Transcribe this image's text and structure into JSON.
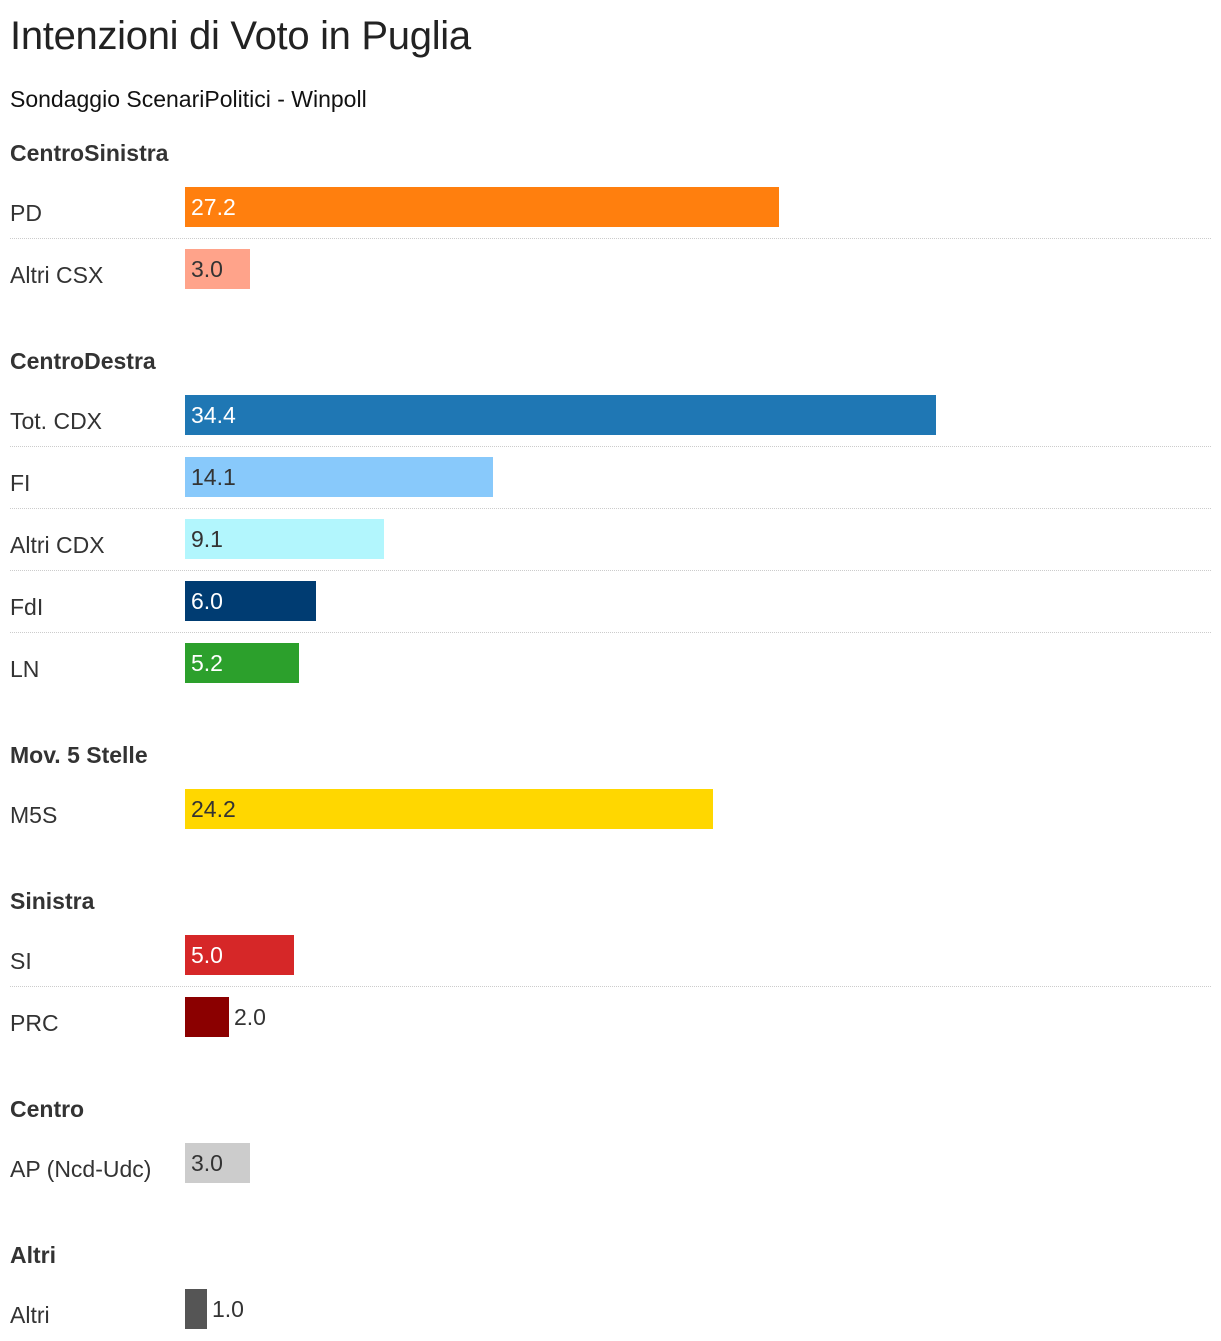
{
  "title": "Intenzioni di Voto in Puglia",
  "subtitle": "Sondaggio ScenariPolitici - Winpoll",
  "chart_data": {
    "type": "bar",
    "orientation": "horizontal",
    "title": "Intenzioni di Voto in Puglia",
    "subtitle": "Sondaggio ScenariPolitici - Winpoll",
    "xlim": [
      0,
      34.4
    ],
    "grid": false,
    "groups": [
      {
        "name": "CentroSinistra",
        "rows": [
          {
            "label": "PD",
            "value": 27.2,
            "value_label": "27.2",
            "color": "#ff7f0e",
            "text_color": "#ffffff"
          },
          {
            "label": "Altri CSX",
            "value": 3.0,
            "value_label": "3.0",
            "color": "#ffa38a",
            "text_color": "#333333"
          }
        ]
      },
      {
        "name": "CentroDestra",
        "rows": [
          {
            "label": "Tot. CDX",
            "value": 34.4,
            "value_label": "34.4",
            "color": "#1f77b4",
            "text_color": "#ffffff"
          },
          {
            "label": "FI",
            "value": 14.1,
            "value_label": "14.1",
            "color": "#88c9fb",
            "text_color": "#333333"
          },
          {
            "label": "Altri CDX",
            "value": 9.1,
            "value_label": "9.1",
            "color": "#b2f6fd",
            "text_color": "#333333"
          },
          {
            "label": "FdI",
            "value": 6.0,
            "value_label": "6.0",
            "color": "#003c72",
            "text_color": "#ffffff"
          },
          {
            "label": "LN",
            "value": 5.2,
            "value_label": "5.2",
            "color": "#2ca02c",
            "text_color": "#ffffff"
          }
        ]
      },
      {
        "name": "Mov. 5 Stelle",
        "rows": [
          {
            "label": "M5S",
            "value": 24.2,
            "value_label": "24.2",
            "color": "#ffd700",
            "text_color": "#333333"
          }
        ]
      },
      {
        "name": "Sinistra",
        "rows": [
          {
            "label": "SI",
            "value": 5.0,
            "value_label": "5.0",
            "color": "#d62728",
            "text_color": "#ffffff"
          },
          {
            "label": "PRC",
            "value": 2.0,
            "value_label": "2.0",
            "color": "#8b0000",
            "text_color": "#333333"
          }
        ]
      },
      {
        "name": "Centro",
        "rows": [
          {
            "label": "AP (Ncd-Udc)",
            "value": 3.0,
            "value_label": "3.0",
            "color": "#cccccc",
            "text_color": "#333333"
          }
        ]
      },
      {
        "name": "Altri",
        "rows": [
          {
            "label": "Altri",
            "value": 1.0,
            "value_label": "1.0",
            "color": "#555555",
            "text_color": "#333333"
          }
        ]
      }
    ]
  }
}
